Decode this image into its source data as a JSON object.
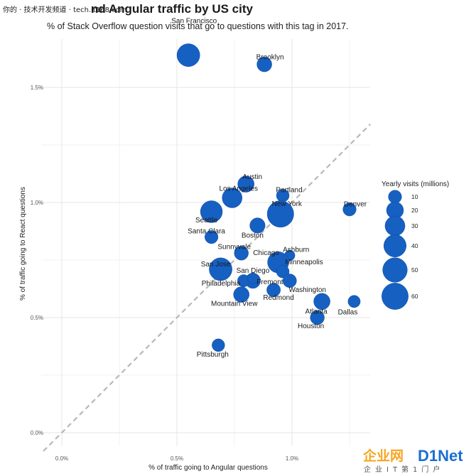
{
  "watermark_text": "你的 · 技术开发频道 · tech.it168.com",
  "chart_data": {
    "type": "scatter",
    "title": "React and Angular traffic by US city",
    "title_visible_part": "nd Angular traffic by US city",
    "subtitle": "% of Stack Overflow question visits that go to questions with this tag in 2017.",
    "xlabel": "% of traffic going to Angular questions",
    "ylabel": "% of traffic going to React questions",
    "xlim": [
      0.0,
      1.35
    ],
    "ylim": [
      0.0,
      1.72
    ],
    "x_ticks": [
      {
        "value": 0.0,
        "label": "0.0%"
      },
      {
        "value": 0.5,
        "label": "0.5%"
      },
      {
        "value": 1.0,
        "label": "1.0%"
      }
    ],
    "y_ticks": [
      {
        "value": 0.0,
        "label": "0.0%"
      },
      {
        "value": 0.5,
        "label": "0.5%"
      },
      {
        "value": 1.0,
        "label": "1.0%"
      },
      {
        "value": 1.5,
        "label": "1.5%"
      }
    ],
    "reference_line": "y = x (dashed)",
    "grid": true,
    "legend_position": "right",
    "bubble_color": "#1660c2",
    "legend": {
      "title": "Yearly visits (millions)",
      "sizes": [
        10,
        20,
        30,
        40,
        50,
        60
      ]
    },
    "points": [
      {
        "city": "San Francisco",
        "x": 0.55,
        "y": 1.64,
        "visits": 42
      },
      {
        "city": "Brooklyn",
        "x": 0.88,
        "y": 1.6,
        "visits": 14
      },
      {
        "city": "Austin",
        "x": 0.8,
        "y": 1.08,
        "visits": 18
      },
      {
        "city": "Portland",
        "x": 0.96,
        "y": 1.03,
        "visits": 9
      },
      {
        "city": "Los Angeles",
        "x": 0.74,
        "y": 1.02,
        "visits": 30
      },
      {
        "city": "Denver",
        "x": 1.25,
        "y": 0.97,
        "visits": 10
      },
      {
        "city": "New York",
        "x": 0.95,
        "y": 0.95,
        "visits": 60
      },
      {
        "city": "Seattle",
        "x": 0.65,
        "y": 0.96,
        "visits": 38
      },
      {
        "city": "Boston",
        "x": 0.85,
        "y": 0.9,
        "visits": 15
      },
      {
        "city": "Santa Clara",
        "x": 0.65,
        "y": 0.85,
        "visits": 10
      },
      {
        "city": "Sunnyvale",
        "x": 0.78,
        "y": 0.78,
        "visits": 12
      },
      {
        "city": "Ashburn",
        "x": 0.99,
        "y": 0.77,
        "visits": 5
      },
      {
        "city": "Chicago",
        "x": 0.94,
        "y": 0.74,
        "visits": 35
      },
      {
        "city": "San Jose",
        "x": 0.69,
        "y": 0.71,
        "visits": 42
      },
      {
        "city": "Minneapolis",
        "x": 0.96,
        "y": 0.7,
        "visits": 9
      },
      {
        "city": "San Diego",
        "x": 0.83,
        "y": 0.66,
        "visits": 15
      },
      {
        "city": "Philadelphia",
        "x": 0.79,
        "y": 0.66,
        "visits": 8
      },
      {
        "city": "Fremont",
        "x": 0.83,
        "y": 0.67,
        "visits": 6
      },
      {
        "city": "Washington",
        "x": 0.99,
        "y": 0.66,
        "visits": 11
      },
      {
        "city": "Redmond",
        "x": 0.92,
        "y": 0.62,
        "visits": 11
      },
      {
        "city": "Mountain View",
        "x": 0.78,
        "y": 0.6,
        "visits": 16
      },
      {
        "city": "Atlanta",
        "x": 1.13,
        "y": 0.57,
        "visits": 18
      },
      {
        "city": "Dallas",
        "x": 1.27,
        "y": 0.57,
        "visits": 8
      },
      {
        "city": "Houston",
        "x": 1.11,
        "y": 0.5,
        "visits": 12
      },
      {
        "city": "Pittsburgh",
        "x": 0.68,
        "y": 0.38,
        "visits": 9
      }
    ]
  },
  "logo": {
    "main": "企业网",
    "net": "D1Net",
    "sub": "企业IT第1门户"
  }
}
